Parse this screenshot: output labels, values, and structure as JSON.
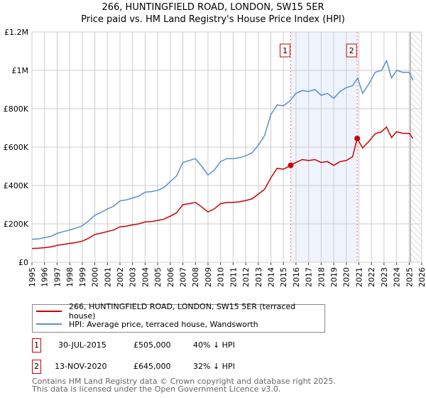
{
  "title_line1": "266, HUNTINGFIELD ROAD, LONDON, SW15 5ER",
  "title_line2": "Price paid vs. HM Land Registry's House Price Index (HPI)",
  "colors": {
    "property": "#cc0000",
    "hpi": "#5b8fd0",
    "shade": "#eef3fc",
    "marker_line": "#ff6666"
  },
  "chart_data": {
    "type": "line",
    "title": "Price paid vs. HM Land Registry's House Price Index (HPI)",
    "xlim": [
      1995,
      2026
    ],
    "ylim": [
      0,
      1200000
    ],
    "y_ticks": [
      {
        "v": 0,
        "label": "£0"
      },
      {
        "v": 200000,
        "label": "£200K"
      },
      {
        "v": 400000,
        "label": "£400K"
      },
      {
        "v": 600000,
        "label": "£600K"
      },
      {
        "v": 800000,
        "label": "£800K"
      },
      {
        "v": 1000000,
        "label": "£1M"
      },
      {
        "v": 1200000,
        "label": "£1.2M"
      }
    ],
    "x_ticks": [
      "1995",
      "1996",
      "1997",
      "1998",
      "1999",
      "2000",
      "2001",
      "2002",
      "2003",
      "2004",
      "2005",
      "2006",
      "2007",
      "2008",
      "2009",
      "2010",
      "2011",
      "2012",
      "2013",
      "2014",
      "2015",
      "2016",
      "2017",
      "2018",
      "2019",
      "2020",
      "2021",
      "2022",
      "2023",
      "2024",
      "2025",
      "2026"
    ],
    "series": [
      {
        "name": "HPI: Average price, terraced house, Wandsworth",
        "x": [
          1995,
          1995.5,
          1996,
          1996.5,
          1997,
          1997.5,
          1998,
          1998.5,
          1999,
          1999.5,
          2000,
          2000.5,
          2001,
          2001.5,
          2002,
          2002.5,
          2003,
          2003.5,
          2004,
          2004.5,
          2005,
          2005.5,
          2006,
          2006.5,
          2007,
          2007.5,
          2008,
          2008.5,
          2009,
          2009.5,
          2010,
          2010.5,
          2011,
          2011.5,
          2012,
          2012.5,
          2013,
          2013.5,
          2014,
          2014.5,
          2015,
          2015.5,
          2016,
          2016.5,
          2017,
          2017.5,
          2018,
          2018.5,
          2019,
          2019.5,
          2020,
          2020.5,
          2020.9,
          2021.3,
          2021.8,
          2022.3,
          2022.8,
          2023.2,
          2023.6,
          2024,
          2024.5,
          2025,
          2025.3
        ],
        "values": [
          120000,
          122000,
          128000,
          135000,
          150000,
          160000,
          168000,
          178000,
          190000,
          215000,
          245000,
          260000,
          278000,
          292000,
          320000,
          325000,
          335000,
          345000,
          365000,
          368000,
          375000,
          390000,
          420000,
          450000,
          520000,
          530000,
          540000,
          500000,
          455000,
          480000,
          525000,
          540000,
          540000,
          545000,
          555000,
          570000,
          610000,
          660000,
          770000,
          820000,
          815000,
          840000,
          880000,
          895000,
          890000,
          900000,
          870000,
          880000,
          855000,
          890000,
          910000,
          920000,
          960000,
          880000,
          930000,
          990000,
          1000000,
          1050000,
          960000,
          1000000,
          990000,
          990000,
          950000
        ]
      },
      {
        "name": "266, HUNTINGFIELD ROAD, LONDON, SW15 5ER (terraced house)",
        "x": [
          1995,
          1995.5,
          1996,
          1996.5,
          1997,
          1997.5,
          1998,
          1998.5,
          1999,
          1999.5,
          2000,
          2000.5,
          2001,
          2001.5,
          2002,
          2002.5,
          2003,
          2003.5,
          2004,
          2004.5,
          2005,
          2005.5,
          2006,
          2006.5,
          2007,
          2007.5,
          2008,
          2008.5,
          2009,
          2009.5,
          2010,
          2010.5,
          2011,
          2011.5,
          2012,
          2012.5,
          2013,
          2013.5,
          2014,
          2014.5,
          2015,
          2015.58,
          2016,
          2016.5,
          2017,
          2017.5,
          2018,
          2018.5,
          2019,
          2019.5,
          2020,
          2020.5,
          2020.87,
          2021.3,
          2021.8,
          2022.3,
          2022.8,
          2023.2,
          2023.6,
          2024,
          2024.5,
          2025,
          2025.3
        ],
        "values": [
          72000,
          73000,
          76000,
          80000,
          88000,
          93000,
          98000,
          103000,
          110000,
          125000,
          145000,
          152000,
          160000,
          168000,
          185000,
          188000,
          195000,
          200000,
          210000,
          212000,
          218000,
          225000,
          240000,
          258000,
          300000,
          305000,
          312000,
          288000,
          262000,
          278000,
          305000,
          312000,
          312000,
          315000,
          322000,
          330000,
          355000,
          380000,
          440000,
          490000,
          485000,
          505000,
          520000,
          535000,
          530000,
          535000,
          520000,
          525000,
          505000,
          525000,
          530000,
          550000,
          645000,
          595000,
          630000,
          670000,
          680000,
          705000,
          650000,
          680000,
          672000,
          672000,
          645000
        ]
      }
    ],
    "annotations": [
      {
        "label": "1",
        "x": 2015.58,
        "y": 505000
      },
      {
        "label": "2",
        "x": 2020.87,
        "y": 645000
      }
    ],
    "legend_position": "below",
    "grid": true
  },
  "legend": [
    "266, HUNTINGFIELD ROAD, LONDON, SW15 5ER (terraced house)",
    "HPI: Average price, terraced house, Wandsworth"
  ],
  "sales": [
    {
      "num": "1",
      "date": "30-JUL-2015",
      "price": "£505,000",
      "delta": "40% ↓ HPI"
    },
    {
      "num": "2",
      "date": "13-NOV-2020",
      "price": "£645,000",
      "delta": "32% ↓ HPI"
    }
  ],
  "footer_line1": "Contains HM Land Registry data © Crown copyright and database right 2025.",
  "footer_line2": "This data is licensed under the Open Government Licence v3.0."
}
